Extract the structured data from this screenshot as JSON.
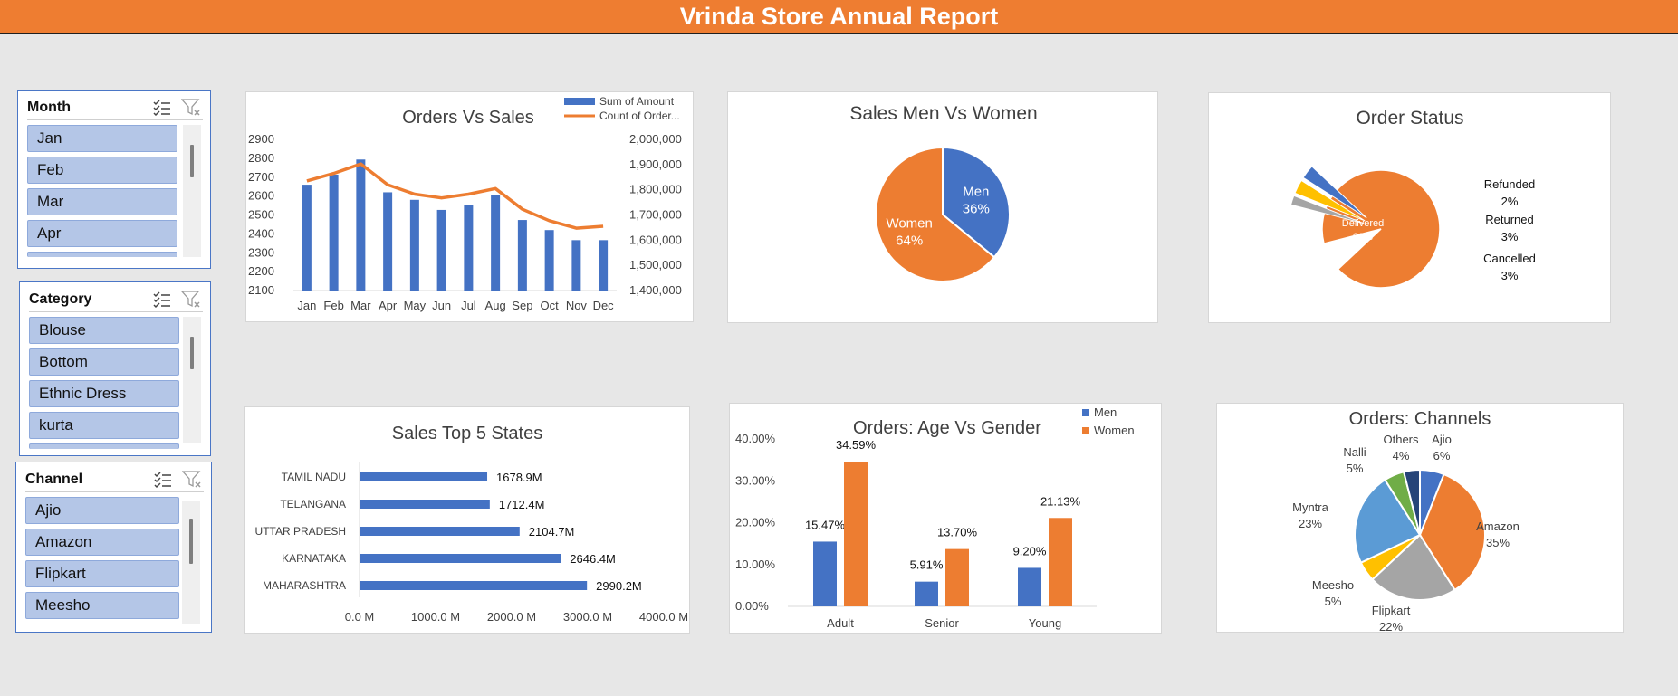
{
  "report_title": "Vrinda Store Annual Report",
  "colors": {
    "banner": "#ee7d31",
    "blue": "#4472c4",
    "orange": "#ed7d31",
    "gray": "#a5a5a5",
    "yellow": "#ffc000",
    "light_blue": "#5b9bd5",
    "green": "#70ad47",
    "navy": "#264478"
  },
  "slicers": {
    "month": {
      "title": "Month",
      "items": [
        "Jan",
        "Feb",
        "Mar",
        "Apr"
      ]
    },
    "category": {
      "title": "Category",
      "items": [
        "Blouse",
        "Bottom",
        "Ethnic Dress",
        "kurta"
      ]
    },
    "channel": {
      "title": "Channel",
      "items": [
        "Ajio",
        "Amazon",
        "Flipkart",
        "Meesho"
      ]
    }
  },
  "icons": {
    "multi_select": "multi-select-icon",
    "clear_filter": "clear-filter-icon"
  },
  "chart_data": [
    {
      "id": "orders_vs_sales",
      "type": "bar",
      "title": "Orders Vs Sales",
      "categories": [
        "Jan",
        "Feb",
        "Mar",
        "Apr",
        "May",
        "Jun",
        "Jul",
        "Aug",
        "Sep",
        "Oct",
        "Nov",
        "Dec"
      ],
      "series": [
        {
          "name": "Sum of Amount",
          "type": "bar",
          "axis": "right",
          "values": [
            1820000,
            1860000,
            1920000,
            1790000,
            1760000,
            1720000,
            1740000,
            1780000,
            1680000,
            1640000,
            1600000,
            1600000
          ]
        },
        {
          "name": "Count of Order...",
          "type": "line",
          "axis": "left",
          "values": [
            2680,
            2720,
            2770,
            2660,
            2610,
            2590,
            2610,
            2640,
            2530,
            2470,
            2430,
            2440
          ]
        }
      ],
      "ylim_left": [
        2100,
        2900
      ],
      "yticks_left": [
        "2900",
        "2800",
        "2700",
        "2600",
        "2500",
        "2400",
        "2300",
        "2200",
        "2100"
      ],
      "ylim_right": [
        1400000,
        2000000
      ],
      "yticks_right": [
        "2,000,000",
        "1,900,000",
        "1,800,000",
        "1,700,000",
        "1,600,000",
        "1,500,000",
        "1,400,000"
      ],
      "legend": "top-right"
    },
    {
      "id": "sales_men_vs_women",
      "type": "pie",
      "title": "Sales Men Vs Women",
      "labels": [
        "Men",
        "Women"
      ],
      "values": [
        36,
        64
      ],
      "value_labels": [
        "36%",
        "64%"
      ]
    },
    {
      "id": "order_status",
      "type": "pie",
      "title": "Order Status",
      "labels": [
        "Delivered",
        "Refunded",
        "Returned",
        "Cancelled"
      ],
      "values": [
        92,
        2,
        3,
        3
      ],
      "value_labels": [
        "92%",
        "2%",
        "3%",
        "3%"
      ]
    },
    {
      "id": "sales_top_5_states",
      "type": "bar",
      "orientation": "horizontal",
      "title": "Sales Top 5 States",
      "categories": [
        "TAMIL NADU",
        "TELANGANA",
        "UTTAR PRADESH",
        "KARNATAKA",
        "MAHARASHTRA"
      ],
      "values": [
        1678.9,
        1712.4,
        2104.7,
        2646.4,
        2990.2
      ],
      "value_labels": [
        "1678.9M",
        "1712.4M",
        "2104.7M",
        "2646.4M",
        "2990.2M"
      ],
      "xlim": [
        0,
        4000
      ],
      "xticks": [
        "0.0 M",
        "1000.0 M",
        "2000.0 M",
        "3000.0 M",
        "4000.0 M"
      ]
    },
    {
      "id": "orders_age_vs_gender",
      "type": "bar",
      "title": "Orders: Age Vs Gender",
      "categories": [
        "Adult",
        "Senior",
        "Young"
      ],
      "series": [
        {
          "name": "Men",
          "values": [
            15.47,
            5.91,
            9.2
          ],
          "value_labels": [
            "15.47%",
            "5.91%",
            "9.20%"
          ]
        },
        {
          "name": "Women",
          "values": [
            34.59,
            13.7,
            21.13
          ],
          "value_labels": [
            "34.59%",
            "13.70%",
            "21.13%"
          ]
        }
      ],
      "ylim": [
        0,
        40
      ],
      "yticks": [
        "40.00%",
        "30.00%",
        "20.00%",
        "10.00%",
        "0.00%"
      ],
      "legend": "top-right"
    },
    {
      "id": "orders_channels",
      "type": "pie",
      "title": "Orders: Channels",
      "labels": [
        "Ajio",
        "Amazon",
        "Flipkart",
        "Meesho",
        "Myntra",
        "Nalli",
        "Others"
      ],
      "values": [
        6,
        35,
        22,
        5,
        23,
        5,
        4
      ],
      "value_labels": [
        "6%",
        "35%",
        "22%",
        "5%",
        "23%",
        "5%",
        "4%"
      ]
    }
  ]
}
